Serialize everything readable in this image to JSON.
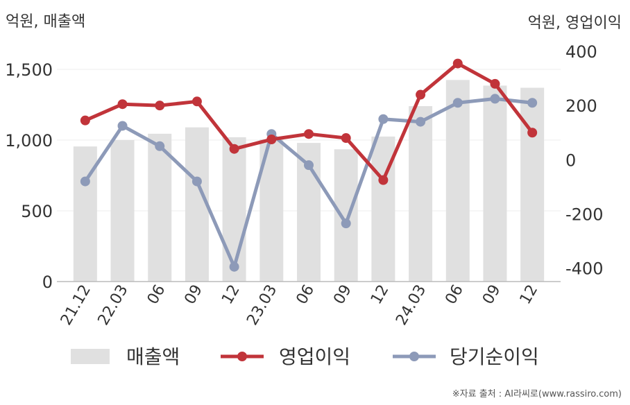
{
  "chart_data": {
    "type": "bar+line",
    "categories": [
      "21.12",
      "22.03",
      "06",
      "09",
      "12",
      "23.03",
      "06",
      "09",
      "12",
      "24.03",
      "06",
      "09",
      "12"
    ],
    "left_axis": {
      "label": "억원, 매출액",
      "ylim": [
        0,
        1500
      ],
      "ticks": [
        0,
        500,
        1000,
        1500
      ],
      "tick_labels": [
        "0",
        "500",
        "1,000",
        "1,500"
      ]
    },
    "right_axis": {
      "label": "억원, 영업이익",
      "ylim": [
        -470,
        400
      ],
      "ticks": [
        -400,
        -200,
        0,
        200,
        400
      ],
      "tick_labels": [
        "-400",
        "-200",
        "0",
        "200",
        "400"
      ]
    },
    "series": [
      {
        "name": "매출액",
        "type": "bar",
        "axis": "left",
        "color": "#e0e0e0",
        "values": [
          955,
          1000,
          1045,
          1090,
          1020,
          1005,
          980,
          935,
          1025,
          1240,
          1425,
          1385,
          1370
        ]
      },
      {
        "name": "영업이익",
        "type": "line",
        "axis": "right",
        "color": "#c1343a",
        "values": [
          145,
          205,
          200,
          215,
          40,
          75,
          95,
          80,
          -75,
          240,
          355,
          280,
          100
        ]
      },
      {
        "name": "당기순이익",
        "type": "line",
        "axis": "right",
        "color": "#8d9ab8",
        "values": [
          -80,
          125,
          50,
          -80,
          -395,
          95,
          -20,
          -235,
          150,
          140,
          210,
          225,
          210
        ]
      }
    ],
    "grid": true,
    "legend": "bottom",
    "source_note": "※자료 출처 : AI라씨로(www.rassiro.com)"
  }
}
